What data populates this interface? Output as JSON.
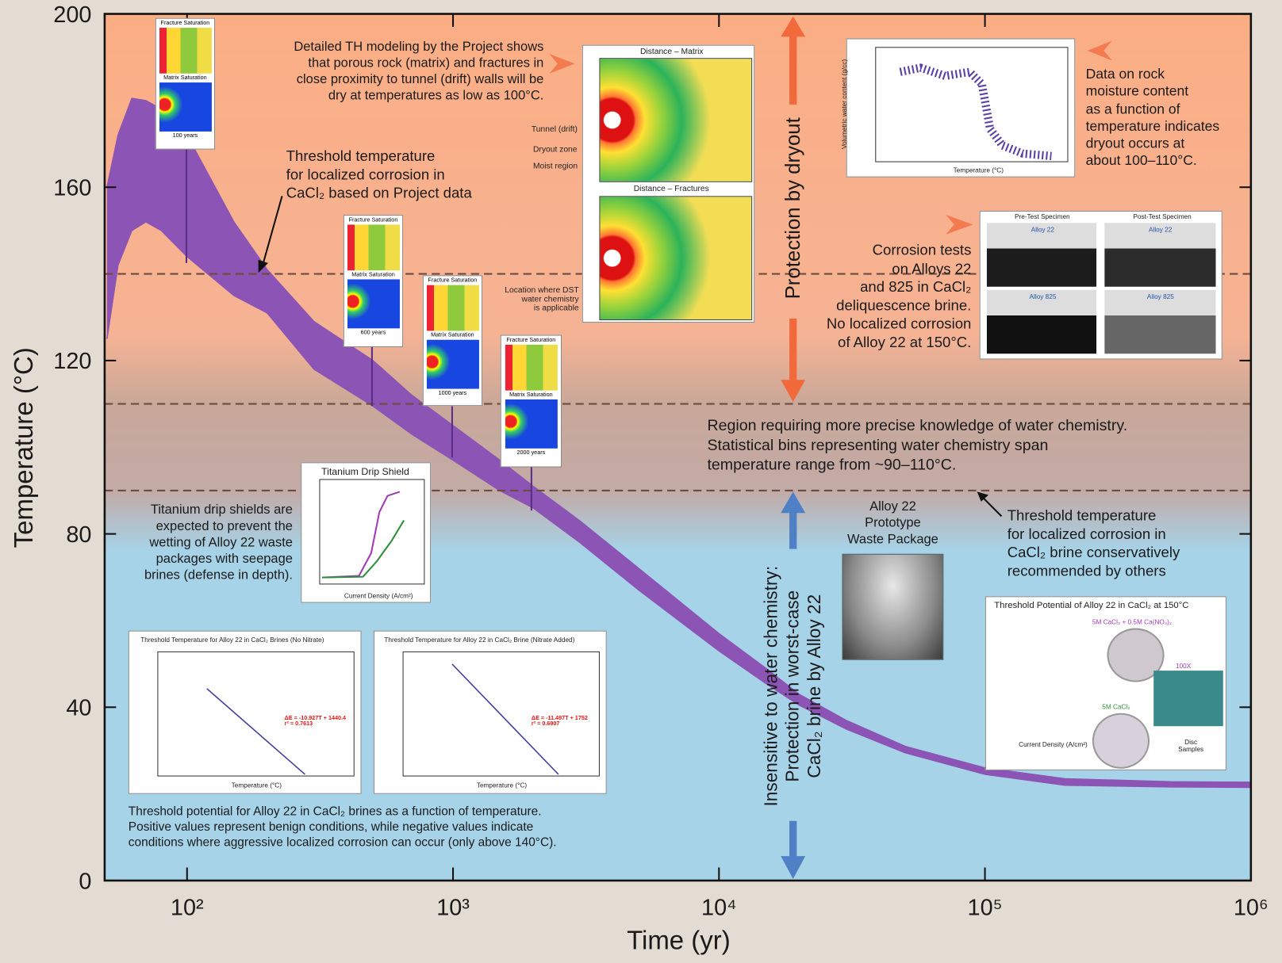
{
  "chart_data": {
    "type": "band",
    "xscale": "log",
    "xlabel": "Time (yr)",
    "ylabel": "Temperature (°C)",
    "x": [
      50,
      55,
      62,
      70,
      80,
      100,
      150,
      200,
      300,
      500,
      700,
      1000,
      1500,
      2000,
      3000,
      5000,
      10000,
      15000,
      20000,
      30000,
      50000,
      100000,
      200000,
      500000,
      1000000
    ],
    "series": [
      {
        "color": "#8b54b5",
        "values": [
          160,
          172,
          180.5,
          180,
          178,
          172,
          152,
          141,
          129,
          120,
          112,
          105,
          97,
          91,
          83,
          72,
          57,
          49,
          43,
          37,
          31,
          26,
          23.5,
          22.8,
          22.7
        ]
      },
      {
        "color": "#8b54b5",
        "values": [
          125,
          142,
          150,
          152,
          150,
          144,
          135,
          131,
          118,
          109.5,
          103,
          97,
          90,
          86,
          78,
          67,
          53,
          45.5,
          40.5,
          35,
          29.5,
          24.5,
          22,
          21.6,
          21.5
        ]
      }
    ],
    "xlim": [
      49,
      1000000
    ],
    "ylim": [
      0,
      200
    ],
    "xticks": [
      {
        "value": 100,
        "label": "10²"
      },
      {
        "value": 1000,
        "label": "10³"
      },
      {
        "value": 10000,
        "label": "10⁴"
      },
      {
        "value": 100000,
        "label": "10⁵"
      },
      {
        "value": 1000000,
        "label": "10⁶"
      }
    ],
    "yticks": [
      0,
      40,
      80,
      120,
      160,
      200
    ],
    "reference_lines": [
      140,
      110,
      90
    ]
  },
  "annotations": [
    "Detailed TH modeling by the Project shows\nthat porous rock (matrix) and fractures in\nclose proximity to tunnel (drift) walls will be\ndry at temperatures as low as 100°C.",
    "Threshold temperature\nfor localized corrosion in\nCaCl₂ based on Project data",
    "Protection by dryout",
    "Data on rock\nmoisture content\nas a function of\ntemperature indicates\ndryout occurs at\nabout 100–110°C.",
    "Corrosion tests\non Alloys 22\nand 825 in CaCl₂\ndeliquescence brine.\nNo localized corrosion\nof Alloy 22 at 150°C.",
    "Region requiring more precise knowledge of water chemistry.\nStatistical bins representing water chemistry span\ntemperature range from ~90–110°C.",
    "Threshold temperature\nfor localized corrosion in\nCaCl₂ brine conservatively\nrecommended by others",
    "Titanium drip shields are\nexpected to prevent the\nwetting of Alloy 22 waste\npackages with seepage\nbrines (defense in depth).",
    "Alloy 22\nPrototype\nWaste Package",
    "Insensitive to water chemistry:\nProtection in worst-case\nCaCl₂ brine by Alloy 22",
    "Threshold potential for Alloy 22 in CaCl₂ brines as a function of temperature.\nPositive values represent benign conditions, while negative values indicate\nconditions where aggressive localized corrosion can occur (only above 140°C)."
  ],
  "insets": {
    "saturation": [
      {
        "fracture": "Fracture Saturation",
        "matrix": "Matrix Saturation",
        "time": "100 years"
      },
      {
        "fracture": "Fracture Saturation",
        "matrix": "Matrix Saturation",
        "time": "600 years"
      },
      {
        "fracture": "Fracture Saturation",
        "matrix": "Matrix Saturation",
        "time": "1000 years"
      },
      {
        "fracture": "Fracture Saturation",
        "matrix": "Matrix Saturation",
        "time": "2000 years"
      }
    ],
    "th_model": {
      "top_title": "Distance – Matrix",
      "bottom_title": "Distance – Fractures",
      "labels": [
        "Tunnel (drift)",
        "Dryout zone",
        "Moist region",
        "Location where DST\nwater chemistry\nis applicable"
      ]
    },
    "moisture": {
      "xlabel": "Temperature (°C)",
      "ylabel": "Volumetric water content (g/cc)"
    },
    "corrosion": {
      "pre": "Pre-Test Specimen",
      "post": "Post-Test Specimen",
      "alloys": [
        "Alloy 22",
        "Alloy 22",
        "Alloy 825",
        "Alloy 825"
      ]
    },
    "drip_shield": {
      "title": "Titanium Drip Shield",
      "xlabel": "Current Density (A/cm²)"
    },
    "threshold_plots": [
      {
        "title": "Threshold Temperature for Alloy 22 in CaCl₂ Brines (No Nitrate)",
        "xlabel": "Temperature (°C)",
        "fit": "ΔE = -10.927T + 1440.4\nr² = 0.7613"
      },
      {
        "title": "Threshold Temperature for Alloy 22 in CaCl₂ Brine (Nitrate Added)",
        "xlabel": "Temperature (°C)",
        "fit": "ΔE = -11.497T + 1752\nr² = 0.6907"
      }
    ],
    "potential": {
      "title": "Threshold Potential of Alloy 22 in CaCl₂ at 150°C",
      "nitrate": "5M CaCl₂ + 0.5M Ca(NO₃)₂",
      "plain": "5M CaCl₂",
      "zoom": "100X",
      "discs": "Disc\nSamples",
      "xlabel": "Current Density (A/cm²)"
    }
  }
}
